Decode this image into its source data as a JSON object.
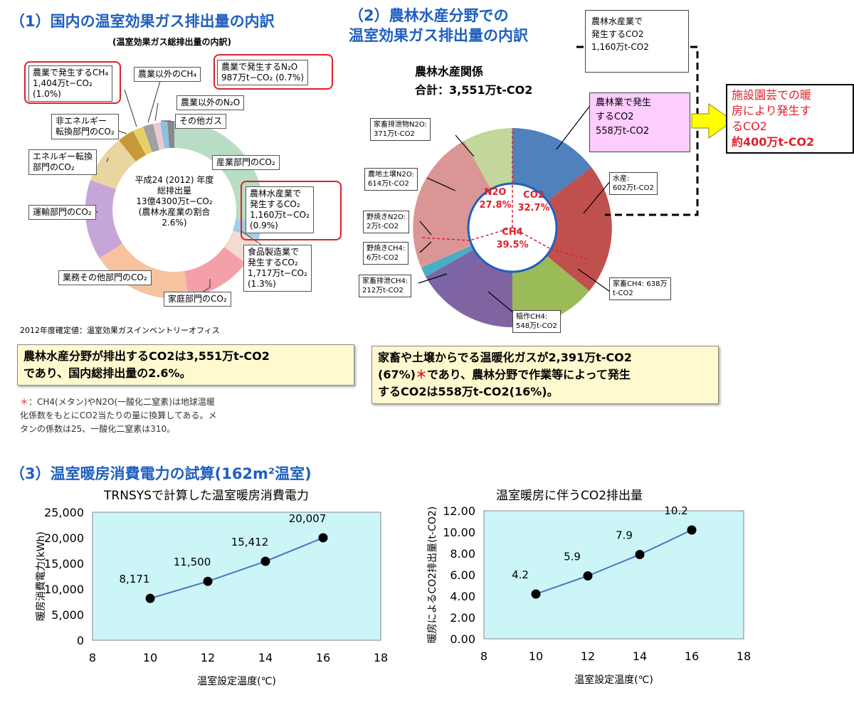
{
  "section1": {
    "title": "（1）国内の温室効果ガス排出量の内訳",
    "subtitle": "(温室効果ガス総排出量の内訳)",
    "center": "平成24 (2012) 年度\n総排出量\n13億4300万t−CO₂\n(農林水産業の割合\n2.6%)",
    "labels": {
      "agri_ch4": "農業で発生するCH₄\n1,404万t−CO₂\n(1.0%)",
      "non_agri_ch4": "農業以外のCH₄",
      "agri_n2o": "農業で発生するN₂O\n987万t−CO₂ (0.7%)",
      "non_agri_n2o": "農業以外のN₂O",
      "other_gas": "その他ガス",
      "non_energy": "非エネルギー\n転換部門のCO₂",
      "industry": "産業部門のCO₂",
      "energy": "エネルギー転換\n部門のCO₂",
      "forestry": "農林水産業で\n発生するCO₂\n1,160万t−CO₂\n(0.9%)",
      "transport": "運輸部門のCO₂",
      "food": "食品製造業で\n発生するCO₂\n1,717万t−CO₂\n(1.3%)",
      "business": "業務その他部門のCO₂",
      "household": "家庭部門のCO₂"
    },
    "source": "2012年度確定値：温室効果ガスインベントリーオフィス",
    "note": "農林水産分野が排出するCO2は3,551万t-CO2\nであり、国内総排出量の2.6%。",
    "footnote_mark": "＊",
    "footnote": "：CH4(メタン)やN2O(一酸化二窒素)は地球温暖\n化係数をもとにCO2当たりの量に換算してある。メ\nタンの係数は25、一酸化二窒素は310。"
  },
  "section2": {
    "title": "（2）農林水産分野での\n温室効果ガス排出量の内訳",
    "pie_title": "農林水産関係\n合計：3,551万t-CO2",
    "top_box": "農林水産業で\n発生するCO2\n1,160万t-CO2",
    "pink_box": "農林業で発生\nするCO2\n558万t-CO2",
    "red_box_line1": "施設園芸での暖\n房により発生す\nるCO2",
    "red_box_line2": "約400万t-CO2",
    "inner": {
      "n2o": "N2O",
      "n2o_pct": "27.8%",
      "co2": "CO2",
      "co2_pct": "32.7%",
      "ch4": "CH4",
      "ch4_pct": "39.5%"
    },
    "callouts": {
      "manure_n2o": "家畜排泄物N2O:\n371万t-CO2",
      "soil_n2o": "農地土壌N2O:\n614万t-CO2",
      "burn_n2o": "野焼きN2O:\n2万t-CO2",
      "burn_ch4": "野焼きCH4:\n6万t-CO2",
      "manure_ch4": "家畜排泄CH4:\n212万t-CO2",
      "rice_ch4": "稲作CH4:\n548万t-CO2",
      "livestock_ch4": "家畜CH4: 638万\nt-CO2",
      "fishery": "水産:\n602万t-CO2"
    },
    "note_a": "家畜や土壌からでる温暖化ガスが2,391万t-CO2\n(67%)",
    "note_star": "＊",
    "note_b": "であり、農林分野で作業等によって発生\nするCO2は558万t-CO2(16%)。"
  },
  "section3": {
    "title": "（3）温室暖房消費電力の試算(162m²温室)"
  },
  "colors": {
    "blue_title": "#1f5fbf",
    "red": "#e0202a",
    "plot_bg": "#ccf5f7",
    "line": "#4a74c4"
  },
  "chart_data": [
    {
      "type": "line",
      "title": "TRNSYSで計算した温室暖房消費電力",
      "xlabel": "温室設定温度(℃)",
      "ylabel": "暖房消費電力(kWh)",
      "x": [
        10,
        12,
        14,
        16
      ],
      "values": [
        8171,
        11500,
        15412,
        20007
      ],
      "data_labels": [
        "8,171",
        "11,500",
        "15,412",
        "20,007"
      ],
      "xlim": [
        8,
        18
      ],
      "ylim": [
        0,
        25000
      ],
      "xticks": [
        8,
        10,
        12,
        14,
        16,
        18
      ],
      "yticks": [
        0,
        5000,
        10000,
        15000,
        20000,
        25000
      ],
      "ytick_labels": [
        "0",
        "5,000",
        "10,000",
        "15,000",
        "20,000",
        "25,000"
      ]
    },
    {
      "type": "line",
      "title": "温室暖房に伴うCO2排出量",
      "xlabel": "温室設定温度(℃)",
      "ylabel": "暖房によるCO2排出量(t-CO2)",
      "x": [
        10,
        12,
        14,
        16
      ],
      "values": [
        4.2,
        5.9,
        7.9,
        10.2
      ],
      "data_labels": [
        "4.2",
        "5.9",
        "7.9",
        "10.2"
      ],
      "xlim": [
        8,
        18
      ],
      "ylim": [
        0,
        12
      ],
      "xticks": [
        8,
        10,
        12,
        14,
        16,
        18
      ],
      "yticks": [
        0,
        2,
        4,
        6,
        8,
        10,
        12
      ],
      "ytick_labels": [
        "0.00",
        "2.00",
        "4.00",
        "6.00",
        "8.00",
        "10.00",
        "12.00"
      ]
    }
  ]
}
